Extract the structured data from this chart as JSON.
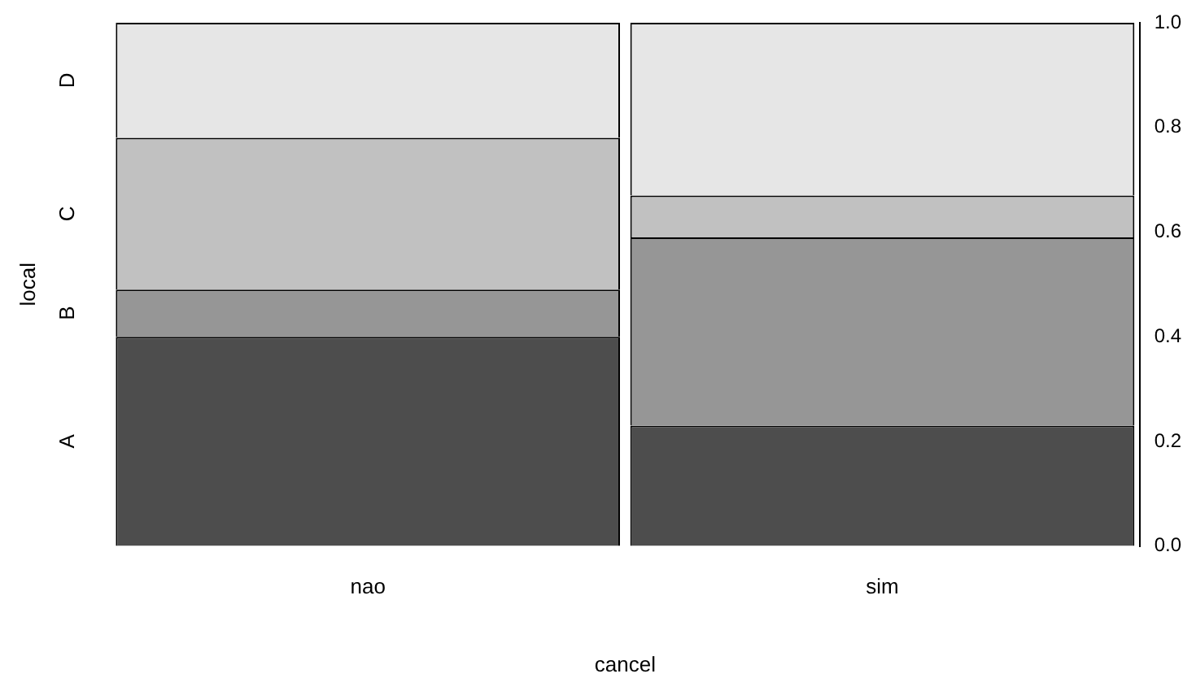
{
  "chart_data": {
    "type": "bar",
    "stacked": true,
    "xlabel": "cancel",
    "ylabel": "local",
    "categories": [
      "nao",
      "sim"
    ],
    "series": [
      {
        "name": "A",
        "color": "#4d4d4d",
        "values": [
          0.4,
          0.23
        ]
      },
      {
        "name": "B",
        "color": "#969696",
        "values": [
          0.09,
          0.36
        ]
      },
      {
        "name": "C",
        "color": "#c1c1c1",
        "values": [
          0.29,
          0.08
        ]
      },
      {
        "name": "D",
        "color": "#e6e6e6",
        "values": [
          0.22,
          0.33
        ]
      }
    ],
    "ylim": [
      0,
      1
    ],
    "yticks": [
      {
        "value": 0,
        "label": "0.0"
      },
      0.2,
      0.4,
      0.6,
      0.8,
      {
        "value": 1,
        "label": "1.0"
      }
    ],
    "grid": false,
    "legend": false
  }
}
